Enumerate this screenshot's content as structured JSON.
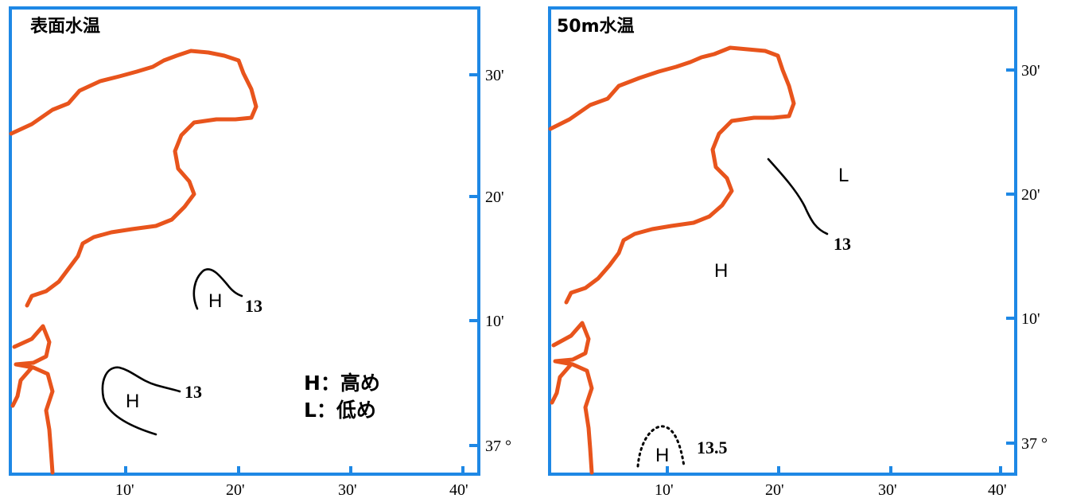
{
  "panels": [
    {
      "title": "表面水温",
      "lat_labels": [
        "30'",
        "20'",
        "10'",
        "37 °"
      ],
      "lon_labels": [
        "10'",
        "20'",
        "30'",
        "40'"
      ],
      "markers": [
        "H",
        "H"
      ],
      "contour_labels": [
        "13",
        "13"
      ],
      "legend": [
        "H：高め",
        "L：低め"
      ]
    },
    {
      "title": "50m水温",
      "lat_labels": [
        "30'",
        "20'",
        "10'",
        "37 °"
      ],
      "lon_labels": [
        "10'",
        "20'",
        "30'",
        "40'"
      ],
      "markers": [
        "L",
        "H",
        "H"
      ],
      "contour_labels": [
        "13",
        "13.5"
      ]
    }
  ],
  "colors": {
    "frame": "#1e88e5",
    "coastline": "#e8541c",
    "contour": "#000000"
  }
}
